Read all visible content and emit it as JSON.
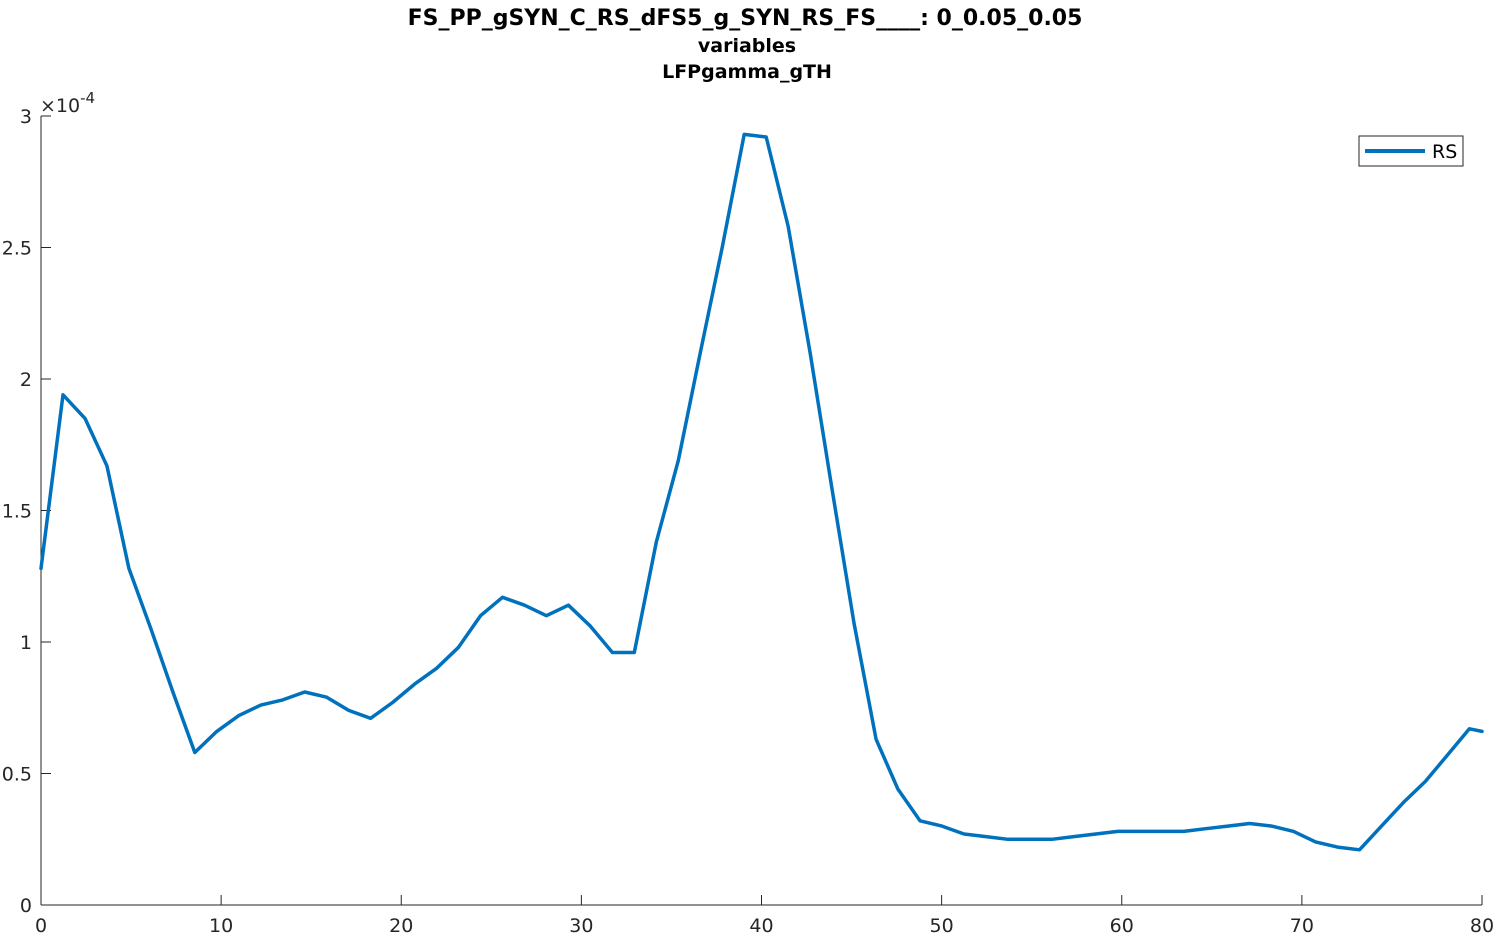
{
  "chart_data": {
    "type": "line",
    "title": "FS_PP_gSYN_C_RS_dFS5_g_SYN_RS_FS____: 0_0.05_0.05",
    "subtitle": "variables",
    "subtitle2": "LFPgamma_gTH",
    "xlabel": "",
    "ylabel": "",
    "xlim": [
      0,
      80
    ],
    "ylim": [
      0,
      3
    ],
    "y_exponent_label": "×10",
    "y_exponent_power": "-4",
    "x_ticks": [
      0,
      10,
      20,
      30,
      40,
      50,
      60,
      70,
      80
    ],
    "x_tick_labels": [
      "0",
      "10",
      "20",
      "30",
      "40",
      "50",
      "60",
      "70",
      "80"
    ],
    "y_ticks": [
      0,
      0.5,
      1,
      1.5,
      2,
      2.5,
      3
    ],
    "y_tick_labels": [
      "0",
      "0.5",
      "1",
      "1.5",
      "2",
      "2.5",
      "3"
    ],
    "grid": false,
    "legend_position": "top-right",
    "colors": {
      "series": "#0072BD",
      "axis": "#262626"
    },
    "series": [
      {
        "name": "RS",
        "x": [
          0,
          1.22,
          2.44,
          3.66,
          4.88,
          6.1,
          7.32,
          8.54,
          9.76,
          10.98,
          12.2,
          13.42,
          14.64,
          15.86,
          17.08,
          18.3,
          19.52,
          20.74,
          21.96,
          23.18,
          24.4,
          25.62,
          26.84,
          28.06,
          29.28,
          30.5,
          31.72,
          32.94,
          34.16,
          35.38,
          36.6,
          37.82,
          39.04,
          40.26,
          41.48,
          42.7,
          43.92,
          45.14,
          46.36,
          47.58,
          48.8,
          50.02,
          51.24,
          52.46,
          53.68,
          54.9,
          56.12,
          57.34,
          58.56,
          59.78,
          61.0,
          62.22,
          63.44,
          64.66,
          65.88,
          67.1,
          68.32,
          69.54,
          70.76,
          71.98,
          73.2,
          74.42,
          75.64,
          76.86,
          78.08,
          79.3,
          80.0
        ],
        "y": [
          1.28,
          1.94,
          1.85,
          1.67,
          1.28,
          1.05,
          0.81,
          0.58,
          0.66,
          0.72,
          0.76,
          0.78,
          0.81,
          0.79,
          0.74,
          0.71,
          0.77,
          0.84,
          0.9,
          0.98,
          1.1,
          1.17,
          1.14,
          1.1,
          1.14,
          1.06,
          0.96,
          0.96,
          1.38,
          1.69,
          2.1,
          2.5,
          2.93,
          2.92,
          2.58,
          2.1,
          1.58,
          1.07,
          0.63,
          0.44,
          0.32,
          0.3,
          0.27,
          0.26,
          0.25,
          0.25,
          0.25,
          0.26,
          0.27,
          0.28,
          0.28,
          0.28,
          0.28,
          0.29,
          0.3,
          0.31,
          0.3,
          0.28,
          0.24,
          0.22,
          0.21,
          0.3,
          0.39,
          0.47,
          0.57,
          0.67,
          0.66
        ]
      }
    ]
  }
}
